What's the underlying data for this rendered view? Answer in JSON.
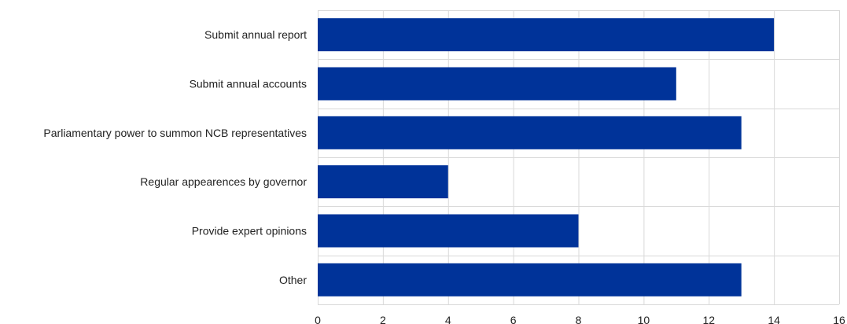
{
  "chart_data": {
    "type": "bar",
    "orientation": "horizontal",
    "title": "",
    "xlabel": "",
    "ylabel": "",
    "categories": [
      "Submit annual report",
      "Submit annual accounts",
      "Parliamentary power to summon NCB representatives",
      "Regular appearences by governor",
      "Provide expert opinions",
      "Other"
    ],
    "values": [
      14,
      11,
      13,
      4,
      8,
      13
    ],
    "xlim": [
      0,
      16
    ],
    "xticks": [
      0,
      2,
      4,
      6,
      8,
      10,
      12,
      14,
      16
    ],
    "grid": true,
    "colors": {
      "bar": "#003399",
      "grid": "#d9d9d9",
      "text": "#222222"
    }
  }
}
